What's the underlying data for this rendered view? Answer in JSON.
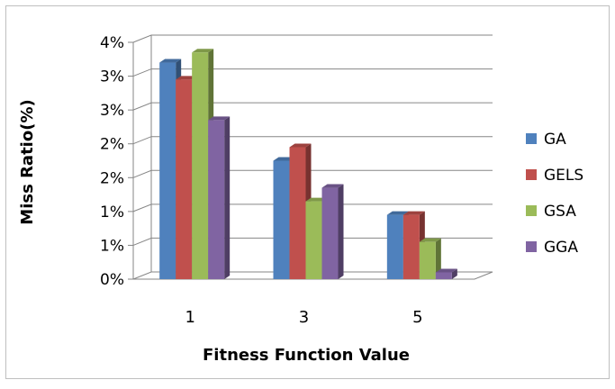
{
  "chart_data": {
    "type": "bar",
    "style": "3d-clustered-column",
    "title": "",
    "xlabel": "Fitness Function Value",
    "ylabel": "Miss Ratio(%)",
    "categories": [
      "1",
      "3",
      "5"
    ],
    "y_ticks": [
      "0%",
      "1%",
      "1%",
      "2%",
      "2%",
      "3%",
      "3%",
      "4%"
    ],
    "ylim": [
      0,
      3.5
    ],
    "grid": true,
    "legend_position": "right",
    "series": [
      {
        "name": "GA",
        "color": "#4F81BD",
        "values": [
          3.2,
          1.75,
          0.95
        ]
      },
      {
        "name": "GELS",
        "color": "#C0504D",
        "values": [
          2.95,
          1.95,
          0.95
        ]
      },
      {
        "name": "GSA",
        "color": "#9BBB59",
        "values": [
          3.35,
          1.15,
          0.55
        ]
      },
      {
        "name": "GGA",
        "color": "#8064A2",
        "values": [
          2.35,
          1.35,
          0.1
        ]
      }
    ]
  }
}
